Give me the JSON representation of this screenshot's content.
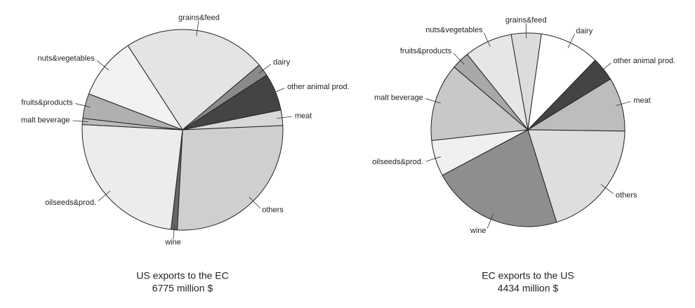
{
  "chart_data": [
    {
      "type": "pie",
      "title": "US exports to the EC",
      "subtitle": "6775 million $",
      "categories": [
        "grains&feed",
        "dairy",
        "other animal prod.",
        "meat",
        "others",
        "wine",
        "oilseeds&prod.",
        "malt beverage",
        "fruits&products",
        "nuts&vegetables"
      ],
      "values": [
        23,
        2,
        6,
        2.5,
        26.5,
        1,
        24,
        1,
        4,
        10
      ],
      "colors": [
        "#e4e4e4",
        "#8a8a8a",
        "#444444",
        "#d8d8d8",
        "#cfcfcf",
        "#666666",
        "#ececec",
        "#bbbbbb",
        "#b0b0b0",
        "#f2f2f2"
      ]
    },
    {
      "type": "pie",
      "title": "EC exports to the US",
      "subtitle": "4434 million $",
      "categories": [
        "grains&feed",
        "dairy",
        "other animal prod.",
        "meat",
        "others",
        "wine",
        "oilseeds&prod.",
        "malt beverage",
        "fruits&products",
        "nuts&vegetables"
      ],
      "values": [
        5,
        10,
        4,
        9,
        20,
        22,
        6,
        13,
        3,
        8
      ],
      "colors": [
        "#dcdcdc",
        "#ffffff",
        "#444444",
        "#bdbdbd",
        "#dedede",
        "#8e8e8e",
        "#f0f0f0",
        "#c8c8c8",
        "#a8a8a8",
        "#e6e6e6"
      ]
    }
  ]
}
